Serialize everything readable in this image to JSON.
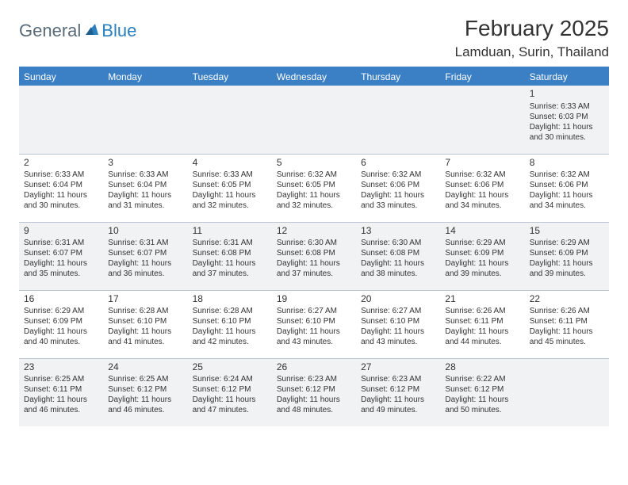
{
  "logo": {
    "general": "General",
    "blue": "Blue"
  },
  "title": "February 2025",
  "location": "Lamduan, Surin, Thailand",
  "colors": {
    "header_bg": "#3b7fc4",
    "header_text": "#ffffff",
    "row_odd_bg": "#f0f2f4",
    "row_even_bg": "#ffffff",
    "border": "#b8c5d0",
    "logo_gray": "#5a6b78",
    "logo_blue": "#2a7fbf"
  },
  "weekdays": [
    "Sunday",
    "Monday",
    "Tuesday",
    "Wednesday",
    "Thursday",
    "Friday",
    "Saturday"
  ],
  "weeks": [
    [
      null,
      null,
      null,
      null,
      null,
      null,
      {
        "n": "1",
        "sunrise": "6:33 AM",
        "sunset": "6:03 PM",
        "daylight": "11 hours and 30 minutes."
      }
    ],
    [
      {
        "n": "2",
        "sunrise": "6:33 AM",
        "sunset": "6:04 PM",
        "daylight": "11 hours and 30 minutes."
      },
      {
        "n": "3",
        "sunrise": "6:33 AM",
        "sunset": "6:04 PM",
        "daylight": "11 hours and 31 minutes."
      },
      {
        "n": "4",
        "sunrise": "6:33 AM",
        "sunset": "6:05 PM",
        "daylight": "11 hours and 32 minutes."
      },
      {
        "n": "5",
        "sunrise": "6:32 AM",
        "sunset": "6:05 PM",
        "daylight": "11 hours and 32 minutes."
      },
      {
        "n": "6",
        "sunrise": "6:32 AM",
        "sunset": "6:06 PM",
        "daylight": "11 hours and 33 minutes."
      },
      {
        "n": "7",
        "sunrise": "6:32 AM",
        "sunset": "6:06 PM",
        "daylight": "11 hours and 34 minutes."
      },
      {
        "n": "8",
        "sunrise": "6:32 AM",
        "sunset": "6:06 PM",
        "daylight": "11 hours and 34 minutes."
      }
    ],
    [
      {
        "n": "9",
        "sunrise": "6:31 AM",
        "sunset": "6:07 PM",
        "daylight": "11 hours and 35 minutes."
      },
      {
        "n": "10",
        "sunrise": "6:31 AM",
        "sunset": "6:07 PM",
        "daylight": "11 hours and 36 minutes."
      },
      {
        "n": "11",
        "sunrise": "6:31 AM",
        "sunset": "6:08 PM",
        "daylight": "11 hours and 37 minutes."
      },
      {
        "n": "12",
        "sunrise": "6:30 AM",
        "sunset": "6:08 PM",
        "daylight": "11 hours and 37 minutes."
      },
      {
        "n": "13",
        "sunrise": "6:30 AM",
        "sunset": "6:08 PM",
        "daylight": "11 hours and 38 minutes."
      },
      {
        "n": "14",
        "sunrise": "6:29 AM",
        "sunset": "6:09 PM",
        "daylight": "11 hours and 39 minutes."
      },
      {
        "n": "15",
        "sunrise": "6:29 AM",
        "sunset": "6:09 PM",
        "daylight": "11 hours and 39 minutes."
      }
    ],
    [
      {
        "n": "16",
        "sunrise": "6:29 AM",
        "sunset": "6:09 PM",
        "daylight": "11 hours and 40 minutes."
      },
      {
        "n": "17",
        "sunrise": "6:28 AM",
        "sunset": "6:10 PM",
        "daylight": "11 hours and 41 minutes."
      },
      {
        "n": "18",
        "sunrise": "6:28 AM",
        "sunset": "6:10 PM",
        "daylight": "11 hours and 42 minutes."
      },
      {
        "n": "19",
        "sunrise": "6:27 AM",
        "sunset": "6:10 PM",
        "daylight": "11 hours and 43 minutes."
      },
      {
        "n": "20",
        "sunrise": "6:27 AM",
        "sunset": "6:10 PM",
        "daylight": "11 hours and 43 minutes."
      },
      {
        "n": "21",
        "sunrise": "6:26 AM",
        "sunset": "6:11 PM",
        "daylight": "11 hours and 44 minutes."
      },
      {
        "n": "22",
        "sunrise": "6:26 AM",
        "sunset": "6:11 PM",
        "daylight": "11 hours and 45 minutes."
      }
    ],
    [
      {
        "n": "23",
        "sunrise": "6:25 AM",
        "sunset": "6:11 PM",
        "daylight": "11 hours and 46 minutes."
      },
      {
        "n": "24",
        "sunrise": "6:25 AM",
        "sunset": "6:12 PM",
        "daylight": "11 hours and 46 minutes."
      },
      {
        "n": "25",
        "sunrise": "6:24 AM",
        "sunset": "6:12 PM",
        "daylight": "11 hours and 47 minutes."
      },
      {
        "n": "26",
        "sunrise": "6:23 AM",
        "sunset": "6:12 PM",
        "daylight": "11 hours and 48 minutes."
      },
      {
        "n": "27",
        "sunrise": "6:23 AM",
        "sunset": "6:12 PM",
        "daylight": "11 hours and 49 minutes."
      },
      {
        "n": "28",
        "sunrise": "6:22 AM",
        "sunset": "6:12 PM",
        "daylight": "11 hours and 50 minutes."
      },
      null
    ]
  ],
  "labels": {
    "sunrise": "Sunrise:",
    "sunset": "Sunset:",
    "daylight": "Daylight:"
  }
}
